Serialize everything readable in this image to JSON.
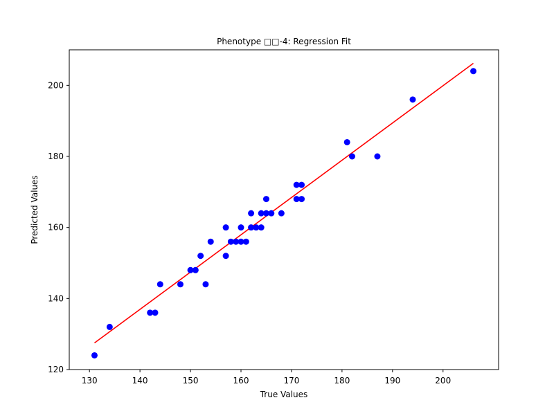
{
  "chart_data": {
    "type": "scatter",
    "title": "Phenotype □□-4: Regression Fit",
    "xlabel": "True Values",
    "ylabel": "Predicted Values",
    "xlim": [
      126,
      211
    ],
    "ylim": [
      120,
      210
    ],
    "xticks": [
      130,
      140,
      150,
      160,
      170,
      180,
      190,
      200
    ],
    "yticks": [
      120,
      140,
      160,
      180,
      200
    ],
    "grid": false,
    "series": [
      {
        "kind": "points",
        "color": "#0000ff",
        "points": [
          [
            131,
            124
          ],
          [
            134,
            132
          ],
          [
            142,
            136
          ],
          [
            143,
            136
          ],
          [
            144,
            144
          ],
          [
            148,
            144
          ],
          [
            150,
            148
          ],
          [
            151,
            148
          ],
          [
            152,
            152
          ],
          [
            153,
            144
          ],
          [
            154,
            156
          ],
          [
            157,
            160
          ],
          [
            157,
            152
          ],
          [
            158,
            156
          ],
          [
            159,
            156
          ],
          [
            160,
            160
          ],
          [
            160,
            156
          ],
          [
            161,
            156
          ],
          [
            162,
            160
          ],
          [
            162,
            164
          ],
          [
            163,
            160
          ],
          [
            164,
            164
          ],
          [
            164,
            160
          ],
          [
            165,
            168
          ],
          [
            165,
            164
          ],
          [
            166,
            164
          ],
          [
            168,
            164
          ],
          [
            171,
            172
          ],
          [
            171,
            168
          ],
          [
            172,
            172
          ],
          [
            172,
            168
          ],
          [
            181,
            184
          ],
          [
            182,
            180
          ],
          [
            187,
            180
          ],
          [
            194,
            196
          ],
          [
            206,
            204
          ]
        ]
      },
      {
        "kind": "fit-line",
        "color": "#ff0000",
        "points": [
          [
            131,
            127.5
          ],
          [
            206,
            206.2
          ]
        ]
      }
    ]
  }
}
